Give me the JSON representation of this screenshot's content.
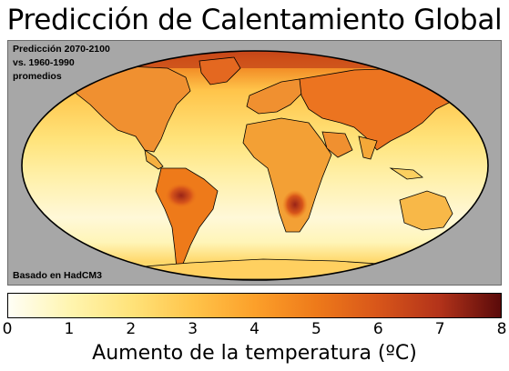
{
  "title": "Predicción de Calentamiento Global",
  "annotation_top": [
    "Predicción 2070-2100",
    "vs. 1960-1990",
    "promedios"
  ],
  "annotation_bottom": "Basado en HadCM3",
  "colorbar": {
    "label": "Aumento de la temperatura (ºC)",
    "min": 0,
    "max": 8,
    "ticks": [
      "0",
      "1",
      "2",
      "3",
      "4",
      "5",
      "6",
      "7",
      "8"
    ],
    "colors": [
      "#fffef6",
      "#fff5b0",
      "#ffe37a",
      "#ffc44a",
      "#fca02a",
      "#ee7a1a",
      "#d8561a",
      "#b3331a",
      "#5a0a0a"
    ]
  },
  "map": {
    "projection": "mollweide",
    "background_color": "#a7a7a7",
    "coastline_color": "#000000"
  }
}
